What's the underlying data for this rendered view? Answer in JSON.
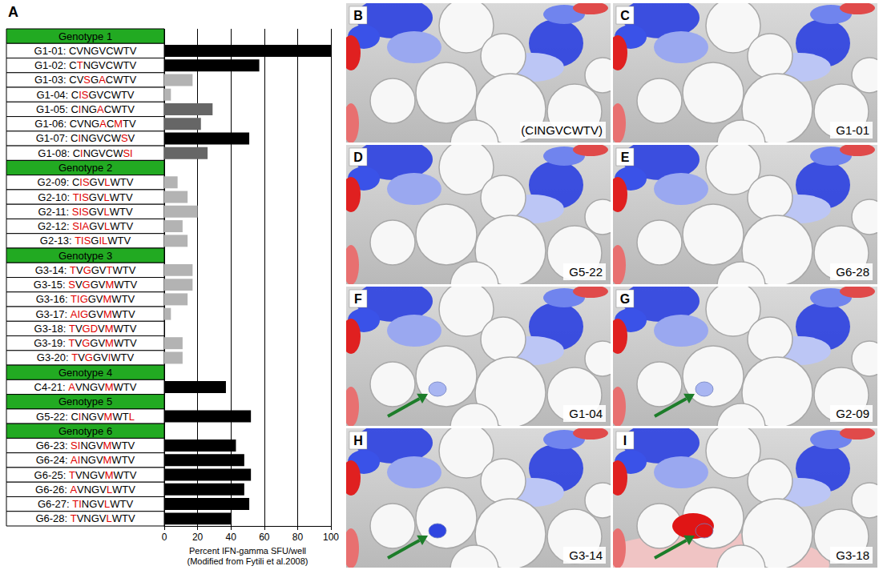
{
  "chart_data": {
    "type": "bar",
    "orientation": "horizontal",
    "panel_letter": "A",
    "categories": [
      "Genotype 1",
      "G1-01: CVNGVCWTV",
      "G1-02: CTNGVCWTV",
      "G1-03: CVSGACWTV",
      "G1-04: CISGVCWTV",
      "G1-05: CINGACWTV",
      "G1-06: CVNGACMTV",
      "G1-07: CINGVCWSV",
      "G1-08: CINGVCWSI",
      "Genotype 2",
      "G2-09: CISGVLWTV",
      "G2-10: TISGVLWTV",
      "G2-11: SISGVLWTV",
      "G2-12: SIAGVLWTV",
      "G2-13: TISGILWTV",
      "Genotype 3",
      "G3-14: TVGGVTWTV",
      "G3-15: SVGGVMWTV",
      "G3-16: TIGGVMWTV",
      "G3-17: AIGGVMWTV",
      "G3-18: TVGDVMWTV",
      "G3-19: TVGGVMWTV",
      "G3-20: TVGGVIWTV",
      "Genotype 4",
      "C4-21: AVNGVMWTV",
      "Genotype 5",
      "G5-22: CINGVMWTL",
      "Genotype 6",
      "G6-23: SINGVMWTV",
      "G6-24: AINGVMWTV",
      "G6-25: TVNGVMWTV",
      "G6-26: AVNGVLWTV",
      "G6-27: TINGVLWTV",
      "G6-28: TVNGVLWTV"
    ],
    "values": [
      null,
      100,
      57,
      17,
      4,
      29,
      22,
      51,
      26,
      null,
      8,
      14,
      20,
      11,
      14,
      null,
      17,
      17,
      14,
      4,
      0,
      11,
      11,
      null,
      37,
      null,
      52,
      null,
      43,
      48,
      52,
      48,
      51,
      40
    ],
    "colors": [
      null,
      "#000000",
      "#000000",
      "#b3b3b3",
      "#b3b3b3",
      "#666666",
      "#666666",
      "#000000",
      "#666666",
      null,
      "#b3b3b3",
      "#b3b3b3",
      "#b3b3b3",
      "#b3b3b3",
      "#b3b3b3",
      null,
      "#b3b3b3",
      "#b3b3b3",
      "#b3b3b3",
      "#b3b3b3",
      "#b3b3b3",
      "#b3b3b3",
      "#b3b3b3",
      null,
      "#000000",
      null,
      "#000000",
      null,
      "#000000",
      "#000000",
      "#000000",
      "#000000",
      "#000000",
      "#000000"
    ],
    "xlabel": "Percent IFN-gamma SFU/well",
    "note": "(Modified from Fytili et al.2008)",
    "xlim": [
      0,
      100
    ],
    "xticks": [
      0,
      20,
      40,
      60,
      80,
      100
    ],
    "grid": true
  },
  "panels": [
    {
      "letter": "B",
      "label": "(CINGVCWTV)",
      "arrow": false,
      "patch_color": null
    },
    {
      "letter": "C",
      "label": "G1-01",
      "arrow": false,
      "patch_color": null
    },
    {
      "letter": "D",
      "label": "G5-22",
      "arrow": false,
      "patch_color": null
    },
    {
      "letter": "E",
      "label": "G6-28",
      "arrow": false,
      "patch_color": null
    },
    {
      "letter": "F",
      "label": "G1-04",
      "arrow": true,
      "patch_color": "#a9b6f2"
    },
    {
      "letter": "G",
      "label": "G2-09",
      "arrow": true,
      "patch_color": "#a9b6f2"
    },
    {
      "letter": "H",
      "label": "G3-14",
      "arrow": true,
      "patch_color": "#2f45e0"
    },
    {
      "letter": "I",
      "label": "G3-18",
      "arrow": true,
      "patch_color": "#e01515"
    }
  ]
}
